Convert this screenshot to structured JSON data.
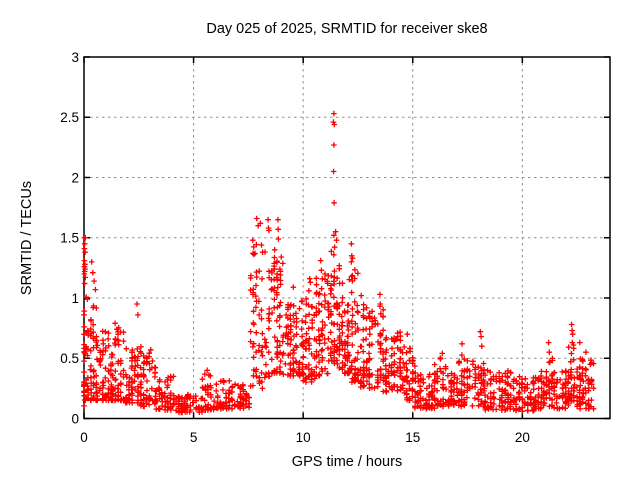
{
  "chart_data": {
    "type": "scatter",
    "title": "Day 025 of 2025, SRMTID for receiver ske8",
    "xlabel": "GPS time / hours",
    "ylabel": "SRMTID / TECUs",
    "xlim": [
      0,
      24
    ],
    "ylim": [
      0,
      3
    ],
    "xticks": [
      0,
      5,
      10,
      15,
      20
    ],
    "yticks": [
      0,
      0.5,
      1,
      1.5,
      2,
      2.5,
      3
    ],
    "grid": true,
    "grid_style": "dashed",
    "grid_color": "#909090",
    "marker": "plus",
    "marker_color": "#ff0000",
    "series_name": "SRMTID for receiver ske8",
    "notable_points": [
      [
        0.02,
        1.5
      ],
      [
        0.06,
        1.5
      ],
      [
        0.03,
        1.45
      ],
      [
        0.02,
        1.41
      ],
      [
        0.05,
        1.38
      ],
      [
        0.02,
        1.31
      ],
      [
        0.04,
        1.28
      ],
      [
        0.02,
        1.26
      ],
      [
        0.05,
        1.24
      ],
      [
        0.03,
        1.22
      ],
      [
        0.02,
        1.2
      ],
      [
        0.06,
        1.17
      ],
      [
        0.03,
        1.12
      ],
      [
        0.15,
        0.99
      ],
      [
        0.35,
        1.3
      ],
      [
        0.4,
        1.21
      ],
      [
        0.46,
        1.14
      ],
      [
        0.52,
        1.07
      ],
      [
        0.42,
        0.92
      ],
      [
        1.42,
        0.79
      ],
      [
        1.5,
        0.74
      ],
      [
        1.55,
        0.7
      ],
      [
        2.42,
        0.95
      ],
      [
        2.46,
        0.86
      ],
      [
        3.05,
        0.57
      ],
      [
        5.62,
        0.4
      ],
      [
        5.7,
        0.36
      ],
      [
        7.7,
        1.48
      ],
      [
        7.8,
        1.37
      ],
      [
        7.88,
        1.66
      ],
      [
        7.95,
        1.6
      ],
      [
        8.05,
        1.62
      ],
      [
        8.1,
        1.44
      ],
      [
        8.15,
        1.38
      ],
      [
        8.4,
        1.65
      ],
      [
        8.42,
        1.58
      ],
      [
        8.44,
        1.56
      ],
      [
        8.7,
        1.4
      ],
      [
        8.85,
        1.65
      ],
      [
        8.86,
        1.57
      ],
      [
        8.87,
        1.49
      ],
      [
        9.0,
        1.34
      ],
      [
        9.55,
        1.09
      ],
      [
        10.3,
        1.16
      ],
      [
        10.33,
        1.13
      ],
      [
        10.8,
        1.31
      ],
      [
        10.83,
        1.23
      ],
      [
        11.4,
        2.53
      ],
      [
        11.38,
        2.46
      ],
      [
        11.42,
        2.44
      ],
      [
        11.4,
        2.27
      ],
      [
        11.39,
        2.05
      ],
      [
        11.41,
        1.79
      ],
      [
        11.4,
        1.52
      ],
      [
        11.48,
        1.55
      ],
      [
        11.52,
        1.48
      ],
      [
        12.2,
        1.45
      ],
      [
        12.22,
        1.35
      ],
      [
        12.25,
        1.33
      ],
      [
        12.2,
        1.3
      ],
      [
        12.65,
        1.02
      ],
      [
        13.5,
        1.03
      ],
      [
        13.52,
        0.95
      ],
      [
        14.75,
        0.7
      ],
      [
        16.35,
        0.54
      ],
      [
        17.25,
        0.62
      ],
      [
        18.08,
        0.72
      ],
      [
        18.12,
        0.68
      ],
      [
        18.15,
        0.6
      ],
      [
        21.2,
        0.63
      ],
      [
        21.23,
        0.55
      ],
      [
        21.26,
        0.47
      ],
      [
        22.25,
        0.78
      ],
      [
        22.27,
        0.73
      ],
      [
        22.3,
        0.7
      ],
      [
        22.28,
        0.63
      ],
      [
        22.33,
        0.61
      ],
      [
        22.62,
        0.63
      ],
      [
        22.9,
        0.55
      ],
      [
        23.1,
        0.45
      ]
    ],
    "dense_bands": [
      {
        "x0": 0.0,
        "x1": 0.1,
        "y0": 0.1,
        "y1": 1.1,
        "n": 30,
        "skew": 1.3
      },
      {
        "x0": 0.05,
        "x1": 0.6,
        "y0": 0.15,
        "y1": 0.95,
        "n": 60,
        "skew": 1.7
      },
      {
        "x0": 0.6,
        "x1": 1.3,
        "y0": 0.15,
        "y1": 0.75,
        "n": 70,
        "skew": 1.7
      },
      {
        "x0": 1.3,
        "x1": 1.8,
        "y0": 0.15,
        "y1": 0.8,
        "n": 55,
        "skew": 1.8
      },
      {
        "x0": 1.8,
        "x1": 2.6,
        "y0": 0.13,
        "y1": 0.62,
        "n": 70,
        "skew": 1.7
      },
      {
        "x0": 2.6,
        "x1": 3.3,
        "y0": 0.1,
        "y1": 0.55,
        "n": 60,
        "skew": 1.7
      },
      {
        "x0": 3.3,
        "x1": 4.2,
        "y0": 0.07,
        "y1": 0.35,
        "n": 60,
        "skew": 1.5
      },
      {
        "x0": 4.2,
        "x1": 5.4,
        "y0": 0.05,
        "y1": 0.2,
        "n": 70,
        "skew": 1.3
      },
      {
        "x0": 5.4,
        "x1": 6.1,
        "y0": 0.07,
        "y1": 0.4,
        "n": 45,
        "skew": 1.6
      },
      {
        "x0": 6.1,
        "x1": 7.6,
        "y0": 0.08,
        "y1": 0.32,
        "n": 85,
        "skew": 1.5
      },
      {
        "x0": 7.6,
        "x1": 8.3,
        "y0": 0.25,
        "y1": 1.45,
        "n": 55,
        "skew": 1.4
      },
      {
        "x0": 8.3,
        "x1": 9.3,
        "y0": 0.35,
        "y1": 1.35,
        "n": 90,
        "skew": 1.5
      },
      {
        "x0": 9.3,
        "x1": 10.0,
        "y0": 0.35,
        "y1": 1.05,
        "n": 70,
        "skew": 1.4
      },
      {
        "x0": 10.0,
        "x1": 10.6,
        "y0": 0.3,
        "y1": 1.1,
        "n": 60,
        "skew": 1.4
      },
      {
        "x0": 10.6,
        "x1": 11.15,
        "y0": 0.35,
        "y1": 1.2,
        "n": 55,
        "skew": 1.4
      },
      {
        "x0": 11.15,
        "x1": 11.65,
        "y0": 0.45,
        "y1": 1.45,
        "n": 60,
        "skew": 1.1
      },
      {
        "x0": 11.65,
        "x1": 12.1,
        "y0": 0.35,
        "y1": 1.15,
        "n": 55,
        "skew": 1.4
      },
      {
        "x0": 12.1,
        "x1": 12.5,
        "y0": 0.3,
        "y1": 1.25,
        "n": 45,
        "skew": 1.4
      },
      {
        "x0": 12.5,
        "x1": 13.4,
        "y0": 0.25,
        "y1": 0.95,
        "n": 75,
        "skew": 1.5
      },
      {
        "x0": 13.4,
        "x1": 13.65,
        "y0": 0.3,
        "y1": 0.95,
        "n": 30,
        "skew": 1.3
      },
      {
        "x0": 13.65,
        "x1": 14.6,
        "y0": 0.22,
        "y1": 0.72,
        "n": 80,
        "skew": 1.5
      },
      {
        "x0": 14.6,
        "x1": 15.1,
        "y0": 0.15,
        "y1": 0.6,
        "n": 45,
        "skew": 1.5
      },
      {
        "x0": 15.1,
        "x1": 16.0,
        "y0": 0.08,
        "y1": 0.38,
        "n": 70,
        "skew": 1.4
      },
      {
        "x0": 16.0,
        "x1": 16.5,
        "y0": 0.1,
        "y1": 0.52,
        "n": 40,
        "skew": 1.5
      },
      {
        "x0": 16.5,
        "x1": 17.1,
        "y0": 0.1,
        "y1": 0.4,
        "n": 45,
        "skew": 1.4
      },
      {
        "x0": 17.1,
        "x1": 17.6,
        "y0": 0.1,
        "y1": 0.55,
        "n": 40,
        "skew": 1.5
      },
      {
        "x0": 17.6,
        "x1": 18.3,
        "y0": 0.1,
        "y1": 0.5,
        "n": 50,
        "skew": 1.5
      },
      {
        "x0": 18.3,
        "x1": 19.6,
        "y0": 0.07,
        "y1": 0.4,
        "n": 90,
        "skew": 1.4
      },
      {
        "x0": 19.6,
        "x1": 20.6,
        "y0": 0.06,
        "y1": 0.35,
        "n": 75,
        "skew": 1.4
      },
      {
        "x0": 20.6,
        "x1": 21.1,
        "y0": 0.08,
        "y1": 0.4,
        "n": 40,
        "skew": 1.4
      },
      {
        "x0": 21.1,
        "x1": 21.45,
        "y0": 0.1,
        "y1": 0.5,
        "n": 30,
        "skew": 1.3
      },
      {
        "x0": 21.45,
        "x1": 22.1,
        "y0": 0.08,
        "y1": 0.42,
        "n": 50,
        "skew": 1.4
      },
      {
        "x0": 22.1,
        "x1": 22.5,
        "y0": 0.1,
        "y1": 0.6,
        "n": 35,
        "skew": 1.3
      },
      {
        "x0": 22.5,
        "x1": 23.25,
        "y0": 0.08,
        "y1": 0.5,
        "n": 65,
        "skew": 1.4
      }
    ]
  }
}
